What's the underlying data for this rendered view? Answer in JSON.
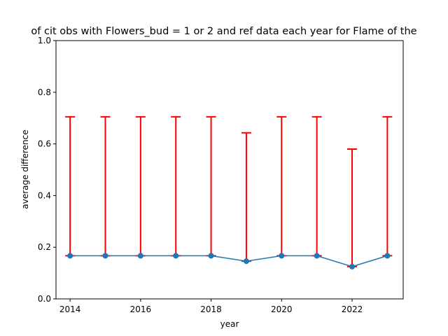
{
  "chart_data": {
    "type": "line",
    "title": "of cit obs with Flowers_bud = 1 or 2 and ref data each year for Flame of the",
    "xlabel": "year",
    "ylabel": "average difference",
    "xlim": [
      2013.6,
      2023.45
    ],
    "ylim": [
      0.0,
      1.0
    ],
    "x_ticks": [
      2014,
      2016,
      2018,
      2020,
      2022
    ],
    "x_tick_labels": [
      "2014",
      "2016",
      "2018",
      "2020",
      "2022"
    ],
    "y_ticks": [
      0.0,
      0.2,
      0.4,
      0.6,
      0.8,
      1.0
    ],
    "y_tick_labels": [
      "0.0",
      "0.2",
      "0.4",
      "0.6",
      "0.8",
      "1.0"
    ],
    "grid": false,
    "series": [
      {
        "x": [
          2014,
          2015,
          2016,
          2017,
          2018,
          2019,
          2020,
          2021,
          2022,
          2023
        ],
        "y": [
          0.167,
          0.167,
          0.167,
          0.167,
          0.167,
          0.146,
          0.167,
          0.167,
          0.125,
          0.167
        ],
        "error_low": [
          0.0,
          0.0,
          0.0,
          0.0,
          0.0,
          0.0,
          0.0,
          0.0,
          0.0,
          0.0
        ],
        "error_high": [
          0.538,
          0.538,
          0.538,
          0.538,
          0.538,
          0.497,
          0.538,
          0.538,
          0.455,
          0.538
        ],
        "line_color": "#1f77b4",
        "errorbar_color": "#ff0000"
      }
    ]
  }
}
